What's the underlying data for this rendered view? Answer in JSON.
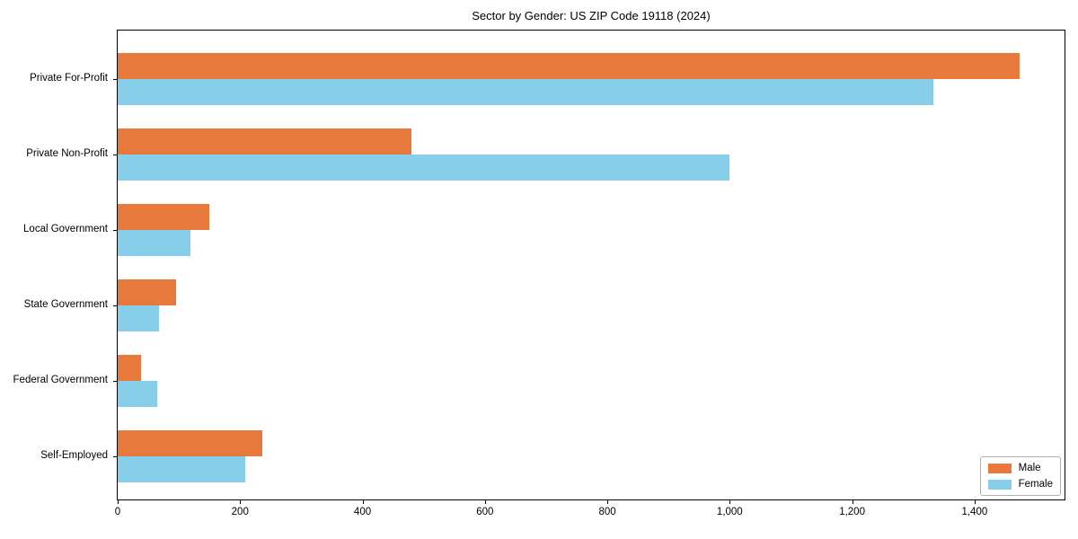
{
  "chart_data": {
    "type": "bar",
    "orientation": "horizontal",
    "title": "Sector by Gender: US ZIP Code 19118 (2024)",
    "categories": [
      "Private For-Profit",
      "Private Non-Profit",
      "Local Government",
      "State Government",
      "Federal Government",
      "Self-Employed"
    ],
    "series": [
      {
        "name": "Male",
        "color": "#E8793D",
        "values": [
          1474,
          480,
          149,
          96,
          38,
          237
        ]
      },
      {
        "name": "Female",
        "color": "#87CEEB",
        "values": [
          1333,
          1000,
          119,
          68,
          65,
          208
        ]
      }
    ],
    "xlabel": "",
    "ylabel": "",
    "xlim": [
      0,
      1547
    ],
    "x_ticks": [
      0,
      200,
      400,
      600,
      800,
      1000,
      1200,
      1400
    ],
    "x_tick_labels": [
      "0",
      "200",
      "400",
      "600",
      "800",
      "1,000",
      "1,200",
      "1,400"
    ],
    "grid": false,
    "legend": {
      "position": "lower right",
      "entries": [
        "Male",
        "Female"
      ]
    }
  },
  "style": {
    "background": "#ffffff",
    "frame_color": "#000000",
    "text_color": "#000000",
    "legend_border_color": "#b0b0b0"
  }
}
